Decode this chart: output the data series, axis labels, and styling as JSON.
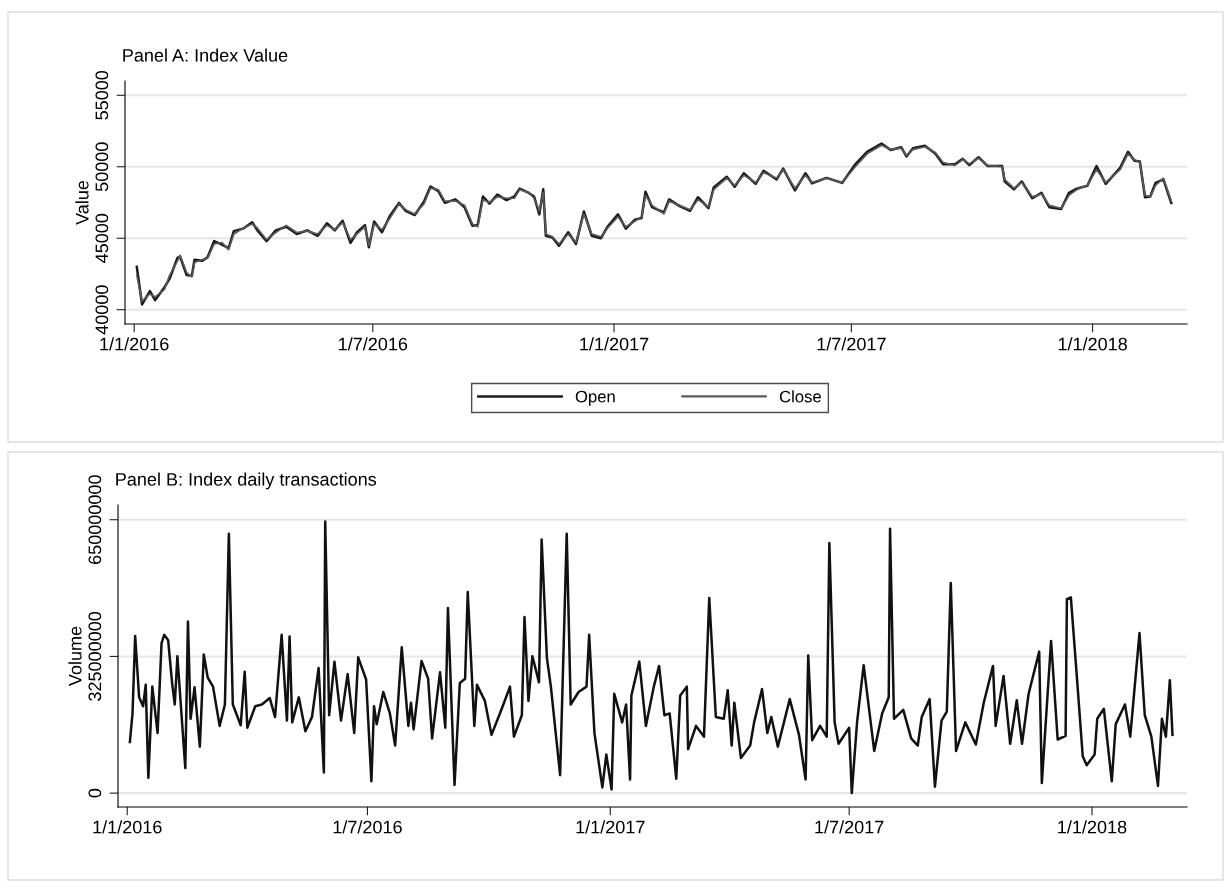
{
  "chart_data": [
    {
      "type": "line",
      "title": "Panel A: Index Value",
      "ylabel": "Value",
      "grid": "y",
      "legend": "bottom",
      "xlim": [
        "2015-12-25",
        "2018-03-14"
      ],
      "xticks": [
        {
          "value": "2016-01-01",
          "label": "1/1/2016"
        },
        {
          "value": "2016-07-01",
          "label": "1/7/2016"
        },
        {
          "value": "2017-01-01",
          "label": "1/1/2017"
        },
        {
          "value": "2017-07-01",
          "label": "1/7/2017"
        },
        {
          "value": "2018-01-01",
          "label": "1/1/2018"
        }
      ],
      "ylim": [
        39000,
        56000
      ],
      "yticks": [
        40000,
        45000,
        50000,
        55000
      ],
      "series": [
        {
          "name": "Open",
          "color": "#1a1a1a",
          "x": [
            "2016-01-03",
            "2016-01-07",
            "2016-01-13",
            "2016-01-17",
            "2016-01-24",
            "2016-01-28",
            "2016-02-03",
            "2016-02-05",
            "2016-02-10",
            "2016-02-14",
            "2016-02-16",
            "2016-02-22",
            "2016-02-26",
            "2016-03-02",
            "2016-03-08",
            "2016-03-13",
            "2016-03-17",
            "2016-03-24",
            "2016-03-31",
            "2016-04-04",
            "2016-04-11",
            "2016-04-18",
            "2016-04-26",
            "2016-05-04",
            "2016-05-12",
            "2016-05-20",
            "2016-05-27",
            "2016-06-02",
            "2016-06-08",
            "2016-06-14",
            "2016-06-19",
            "2016-06-25",
            "2016-06-28",
            "2016-07-02",
            "2016-07-08",
            "2016-07-14",
            "2016-07-21",
            "2016-07-26",
            "2016-08-02",
            "2016-08-09",
            "2016-08-14",
            "2016-08-20",
            "2016-08-25",
            "2016-09-02",
            "2016-09-09",
            "2016-09-15",
            "2016-09-19",
            "2016-09-23",
            "2016-09-28",
            "2016-10-04",
            "2016-10-11",
            "2016-10-17",
            "2016-10-21",
            "2016-10-28",
            "2016-11-01",
            "2016-11-05",
            "2016-11-08",
            "2016-11-10",
            "2016-11-15",
            "2016-11-20",
            "2016-11-27",
            "2016-12-03",
            "2016-12-09",
            "2016-12-15",
            "2016-12-22",
            "2016-12-27",
            "2017-01-04",
            "2017-01-10",
            "2017-01-17",
            "2017-01-22",
            "2017-01-25",
            "2017-01-30",
            "2017-02-08",
            "2017-02-12",
            "2017-02-20",
            "2017-02-28",
            "2017-03-06",
            "2017-03-14",
            "2017-03-18",
            "2017-03-28",
            "2017-04-03",
            "2017-04-10",
            "2017-04-19",
            "2017-04-25",
            "2017-05-05",
            "2017-05-10",
            "2017-05-19",
            "2017-05-27",
            "2017-06-01",
            "2017-06-12",
            "2017-06-24",
            "2017-07-04",
            "2017-07-13",
            "2017-07-24",
            "2017-07-31",
            "2017-08-08",
            "2017-08-12",
            "2017-08-17",
            "2017-08-26",
            "2017-09-03",
            "2017-09-09",
            "2017-09-18",
            "2017-09-24",
            "2017-09-29",
            "2017-10-06",
            "2017-10-13",
            "2017-10-24",
            "2017-10-26",
            "2017-11-02",
            "2017-11-08",
            "2017-11-16",
            "2017-11-23",
            "2017-11-29",
            "2017-12-08",
            "2017-12-14",
            "2017-12-20",
            "2017-12-28",
            "2018-01-04",
            "2018-01-11",
            "2018-01-22",
            "2018-01-28",
            "2018-02-02",
            "2018-02-06",
            "2018-02-10",
            "2018-02-14",
            "2018-02-18",
            "2018-02-24",
            "2018-03-02"
          ],
          "values": [
            43000,
            40370,
            41300,
            40670,
            41550,
            42170,
            43620,
            43720,
            42420,
            42370,
            43500,
            43420,
            43670,
            44800,
            44550,
            44300,
            45500,
            45670,
            46120,
            45550,
            44800,
            45550,
            45800,
            45300,
            45550,
            45170,
            46050,
            45550,
            46220,
            44670,
            45420,
            45920,
            44370,
            46170,
            45420,
            46550,
            47470,
            46920,
            46620,
            47550,
            48620,
            48300,
            47470,
            47720,
            47170,
            45870,
            45920,
            47920,
            47420,
            48050,
            47670,
            47920,
            48470,
            48170,
            47920,
            46670,
            48420,
            45170,
            45050,
            44470,
            45420,
            44600,
            46870,
            45170,
            45000,
            45800,
            46670,
            45670,
            46300,
            46420,
            48250,
            47170,
            46800,
            47720,
            47250,
            46920,
            47870,
            47100,
            48550,
            49300,
            48600,
            49550,
            48800,
            49720,
            49120,
            49870,
            48350,
            49550,
            48850,
            49220,
            48870,
            50170,
            51050,
            51620,
            51170,
            51370,
            50720,
            51300,
            51470,
            50920,
            50170,
            50170,
            50550,
            50120,
            50670,
            50050,
            50050,
            48970,
            48420,
            48970,
            47800,
            48170,
            47170,
            47050,
            48170,
            48470,
            48670,
            50050,
            48800,
            49920,
            51050,
            50420,
            50370,
            47870,
            47920,
            48870,
            49120,
            47470
          ]
        },
        {
          "name": "Close",
          "color": "#5a5a5a",
          "x": [
            "2016-01-03",
            "2016-01-07",
            "2016-01-13",
            "2016-01-17",
            "2016-01-24",
            "2016-01-28",
            "2016-02-03",
            "2016-02-05",
            "2016-02-10",
            "2016-02-14",
            "2016-02-16",
            "2016-02-22",
            "2016-02-26",
            "2016-03-02",
            "2016-03-08",
            "2016-03-13",
            "2016-03-17",
            "2016-03-24",
            "2016-03-31",
            "2016-04-04",
            "2016-04-11",
            "2016-04-18",
            "2016-04-26",
            "2016-05-04",
            "2016-05-12",
            "2016-05-20",
            "2016-05-27",
            "2016-06-02",
            "2016-06-08",
            "2016-06-14",
            "2016-06-19",
            "2016-06-25",
            "2016-06-28",
            "2016-07-02",
            "2016-07-08",
            "2016-07-14",
            "2016-07-21",
            "2016-07-26",
            "2016-08-02",
            "2016-08-09",
            "2016-08-14",
            "2016-08-20",
            "2016-08-25",
            "2016-09-02",
            "2016-09-09",
            "2016-09-15",
            "2016-09-19",
            "2016-09-23",
            "2016-09-28",
            "2016-10-04",
            "2016-10-11",
            "2016-10-17",
            "2016-10-21",
            "2016-10-28",
            "2016-11-01",
            "2016-11-05",
            "2016-11-08",
            "2016-11-10",
            "2016-11-15",
            "2016-11-20",
            "2016-11-27",
            "2016-12-03",
            "2016-12-09",
            "2016-12-15",
            "2016-12-22",
            "2016-12-27",
            "2017-01-04",
            "2017-01-10",
            "2017-01-17",
            "2017-01-22",
            "2017-01-25",
            "2017-01-30",
            "2017-02-08",
            "2017-02-12",
            "2017-02-20",
            "2017-02-28",
            "2017-03-06",
            "2017-03-14",
            "2017-03-18",
            "2017-03-28",
            "2017-04-03",
            "2017-04-10",
            "2017-04-19",
            "2017-04-25",
            "2017-05-05",
            "2017-05-10",
            "2017-05-19",
            "2017-05-27",
            "2017-06-01",
            "2017-06-12",
            "2017-06-24",
            "2017-07-04",
            "2017-07-13",
            "2017-07-24",
            "2017-07-31",
            "2017-08-08",
            "2017-08-12",
            "2017-08-17",
            "2017-08-26",
            "2017-09-03",
            "2017-09-09",
            "2017-09-18",
            "2017-09-24",
            "2017-09-29",
            "2017-10-06",
            "2017-10-13",
            "2017-10-24",
            "2017-10-26",
            "2017-11-02",
            "2017-11-08",
            "2017-11-16",
            "2017-11-23",
            "2017-11-29",
            "2017-12-08",
            "2017-12-14",
            "2017-12-20",
            "2017-12-28",
            "2018-01-04",
            "2018-01-11",
            "2018-01-22",
            "2018-01-28",
            "2018-02-02",
            "2018-02-06",
            "2018-02-10",
            "2018-02-14",
            "2018-02-18",
            "2018-02-24",
            "2018-03-02"
          ],
          "values": [
            42400,
            40600,
            41100,
            40900,
            41400,
            42400,
            43400,
            43800,
            42600,
            42300,
            43300,
            43500,
            43600,
            44600,
            44700,
            44200,
            45300,
            45700,
            46000,
            45700,
            44900,
            45400,
            45900,
            45400,
            45500,
            45300,
            45900,
            45600,
            46100,
            44900,
            45300,
            45800,
            44500,
            46000,
            45600,
            46400,
            47400,
            47000,
            46700,
            47400,
            48500,
            48400,
            47600,
            47600,
            47300,
            46000,
            45800,
            47700,
            47500,
            47900,
            47800,
            47800,
            48400,
            48200,
            47800,
            46900,
            48200,
            45300,
            45100,
            44600,
            45300,
            44700,
            46700,
            45300,
            45100,
            45700,
            46500,
            45800,
            46200,
            46500,
            48000,
            47300,
            46700,
            47600,
            47300,
            47000,
            47700,
            47200,
            48400,
            49200,
            48700,
            49400,
            48900,
            49600,
            49200,
            49800,
            48500,
            49400,
            48900,
            49200,
            48900,
            50000,
            50900,
            51500,
            51200,
            51300,
            50800,
            51200,
            51400,
            51000,
            50300,
            50100,
            50500,
            50200,
            50600,
            50100,
            50000,
            49100,
            48500,
            48900,
            47900,
            48100,
            47300,
            47100,
            48000,
            48400,
            48700,
            49800,
            48900,
            49800,
            50900,
            50500,
            50300,
            48000,
            47900,
            48700,
            49200,
            47600
          ]
        }
      ]
    },
    {
      "type": "line",
      "title": "Panel B: Index daily transactions",
      "ylabel": "Volume",
      "grid": "y",
      "xlim": [
        "2015-12-25",
        "2018-03-14"
      ],
      "xticks": [
        {
          "value": "2016-01-01",
          "label": "1/1/2016"
        },
        {
          "value": "2016-07-01",
          "label": "1/7/2016"
        },
        {
          "value": "2017-01-01",
          "label": "1/1/2017"
        },
        {
          "value": "2017-07-01",
          "label": "1/7/2017"
        },
        {
          "value": "2018-01-01",
          "label": "1/1/2018"
        }
      ],
      "ylim": [
        -33000000,
        685000000
      ],
      "yticks": [
        0,
        325000000,
        650000000
      ],
      "series": [
        {
          "color": "#111111",
          "x": [
            "2016-01-03",
            "2016-01-05",
            "2016-01-07",
            "2016-01-10",
            "2016-01-13",
            "2016-01-15",
            "2016-01-17",
            "2016-01-20",
            "2016-01-24",
            "2016-01-27",
            "2016-01-29",
            "2016-02-01",
            "2016-02-04",
            "2016-02-06",
            "2016-02-08",
            "2016-02-14",
            "2016-02-16",
            "2016-02-18",
            "2016-02-21",
            "2016-02-25",
            "2016-02-28",
            "2016-03-02",
            "2016-03-06",
            "2016-03-11",
            "2016-03-15",
            "2016-03-18",
            "2016-03-21",
            "2016-03-27",
            "2016-03-30",
            "2016-04-01",
            "2016-04-07",
            "2016-04-12",
            "2016-04-18",
            "2016-04-22",
            "2016-04-27",
            "2016-05-01",
            "2016-05-03",
            "2016-05-05",
            "2016-05-10",
            "2016-05-15",
            "2016-05-20",
            "2016-05-25",
            "2016-05-29",
            "2016-05-30",
            "2016-06-02",
            "2016-06-06",
            "2016-06-11",
            "2016-06-16",
            "2016-06-21",
            "2016-06-24",
            "2016-06-30",
            "2016-07-04",
            "2016-07-06",
            "2016-07-08",
            "2016-07-13",
            "2016-07-18",
            "2016-07-22",
            "2016-07-27",
            "2016-08-01",
            "2016-08-03",
            "2016-08-05",
            "2016-08-11",
            "2016-08-16",
            "2016-08-19",
            "2016-08-25",
            "2016-08-29",
            "2016-08-31",
            "2016-09-05",
            "2016-09-09",
            "2016-09-13",
            "2016-09-15",
            "2016-09-20",
            "2016-09-22",
            "2016-09-28",
            "2016-10-03",
            "2016-10-11",
            "2016-10-17",
            "2016-10-20",
            "2016-10-26",
            "2016-10-28",
            "2016-10-31",
            "2016-11-03",
            "2016-11-08",
            "2016-11-10",
            "2016-11-14",
            "2016-11-17",
            "2016-11-24",
            "2016-11-29",
            "2016-12-02",
            "2016-12-08",
            "2016-12-14",
            "2016-12-16",
            "2016-12-20",
            "2016-12-26",
            "2016-12-29",
            "2017-01-02",
            "2017-01-04",
            "2017-01-10",
            "2017-01-13",
            "2017-01-16",
            "2017-01-17",
            "2017-01-23",
            "2017-01-28",
            "2017-02-03",
            "2017-02-07",
            "2017-02-11",
            "2017-02-15",
            "2017-02-20",
            "2017-02-23",
            "2017-02-28",
            "2017-03-01",
            "2017-03-07",
            "2017-03-13",
            "2017-03-17",
            "2017-03-22",
            "2017-03-28",
            "2017-03-31",
            "2017-04-03",
            "2017-04-05",
            "2017-04-10",
            "2017-04-17",
            "2017-04-20",
            "2017-04-26",
            "2017-04-30",
            "2017-05-03",
            "2017-05-08",
            "2017-05-17",
            "2017-05-24",
            "2017-05-29",
            "2017-05-31",
            "2017-06-03",
            "2017-06-09",
            "2017-06-14",
            "2017-06-16",
            "2017-06-20",
            "2017-06-23",
            "2017-07-01",
            "2017-07-03",
            "2017-07-07",
            "2017-07-12",
            "2017-07-15",
            "2017-07-20",
            "2017-07-26",
            "2017-07-31",
            "2017-08-01",
            "2017-08-04",
            "2017-08-11",
            "2017-08-17",
            "2017-08-22",
            "2017-08-25",
            "2017-08-31",
            "2017-09-04",
            "2017-09-09",
            "2017-09-13",
            "2017-09-16",
            "2017-09-20",
            "2017-09-27",
            "2017-10-05",
            "2017-10-11",
            "2017-10-18",
            "2017-10-20",
            "2017-10-26",
            "2017-10-31",
            "2017-11-05",
            "2017-11-09",
            "2017-11-14",
            "2017-11-22",
            "2017-11-24",
            "2017-12-01",
            "2017-12-06",
            "2017-12-12",
            "2017-12-13",
            "2017-12-16",
            "2017-12-21",
            "2017-12-25",
            "2017-12-28",
            "2018-01-03",
            "2018-01-05",
            "2018-01-10",
            "2018-01-16",
            "2018-01-19",
            "2018-01-26",
            "2018-01-30",
            "2018-02-06",
            "2018-02-10",
            "2018-02-15",
            "2018-02-20",
            "2018-02-23",
            "2018-02-26",
            "2018-03-01",
            "2018-03-03"
          ],
          "values": [
            121500000,
            189500000,
            373800000,
            227700000,
            206500000,
            257400000,
            36600000,
            253200000,
            142800000,
            356800000,
            376300000,
            363600000,
            261700000,
            210700000,
            325400000,
            59500000,
            407800000,
            176800000,
            251500000,
            110500000,
            329600000,
            274400000,
            253200000,
            159800000,
            210700000,
            616700000,
            210700000,
            161500000,
            288800000,
            155500000,
            206500000,
            210700000,
            226000000,
            181000000,
            376300000,
            172500000,
            372100000,
            168200000,
            227700000,
            147000000,
            181000000,
            297300000,
            49300000,
            645600000,
            185200000,
            312600000,
            172500000,
            282900000,
            142800000,
            322800000,
            270200000,
            28100000,
            206500000,
            164000000,
            240500000,
            189500000,
            113100000,
            346600000,
            159800000,
            215000000,
            151300000,
            314300000,
            271900000,
            130000000,
            287200000,
            155500000,
            440000000,
            19600000,
            261700000,
            271900000,
            478200000,
            159800000,
            257400000,
            219200000,
            138500000,
            202200000,
            253200000,
            134300000,
            185200000,
            418800000,
            219200000,
            325400000,
            263400000,
            603100000,
            321100000,
            253200000,
            42600000,
            616700000,
            210700000,
            240500000,
            253200000,
            376300000,
            142800000,
            13600000,
            91800000,
            8600000,
            236200000,
            168200000,
            210700000,
            32300000,
            232000000,
            312600000,
            159800000,
            253200000,
            302400000,
            185200000,
            189500000,
            34100000,
            232000000,
            253200000,
            104600000,
            159800000,
            134300000,
            463800000,
            181000000,
            176800000,
            244700000,
            113100000,
            215000000,
            83300000,
            113100000,
            168200000,
            247200000,
            142800000,
            181000000,
            110500000,
            223500000,
            138500000,
            32300000,
            327100000,
            125800000,
            159800000,
            134300000,
            594600000,
            168200000,
            117300000,
            155500000,
            0,
            168200000,
            304100000,
            227700000,
            100300000,
            189500000,
            227700000,
            628600000,
            176800000,
            198000000,
            130000000,
            113100000,
            181000000,
            223500000,
            15400000,
            172500000,
            193700000,
            499500000,
            100300000,
            168200000,
            115600000,
            215000000,
            302400000,
            159800000,
            278700000,
            117300000,
            220900000,
            117300000,
            236200000,
            336400000,
            23900000,
            361900000,
            127500000,
            136000000,
            461300000,
            465500000,
            257400000,
            87600000,
            66300000,
            91800000,
            176800000,
            200500000,
            28100000,
            164000000,
            210700000,
            134300000,
            380600000,
            185200000,
            134300000,
            17100000,
            176800000,
            134300000,
            268500000,
            138500000
          ]
        }
      ]
    }
  ]
}
